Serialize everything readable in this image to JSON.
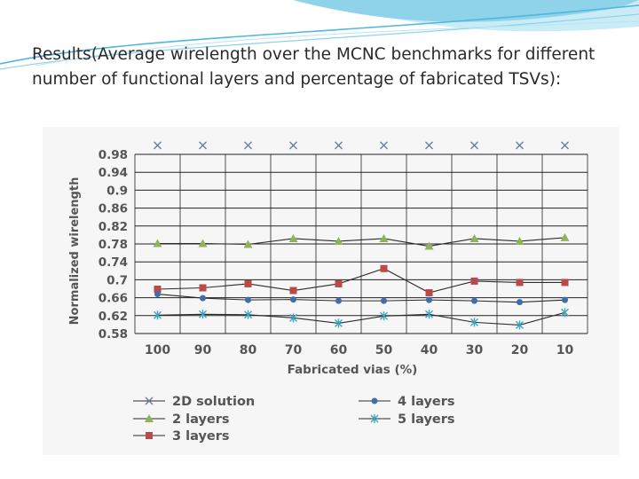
{
  "slide": {
    "title": "Results(Average wirelength over the MCNC benchmarks for different number of functional layers and percentage of fabricated TSVs):"
  },
  "theme": {
    "swoosh_colors": [
      "#8fd3ea",
      "#4fb6dc",
      "#c9ecf7"
    ],
    "grid_color": "#222222",
    "axis_text_color": "#555555"
  },
  "chart_data": {
    "type": "line",
    "title": "",
    "xlabel": "Fabricated vias (%)",
    "ylabel": "Normalized wirelength",
    "categories": [
      "100",
      "90",
      "80",
      "70",
      "60",
      "50",
      "40",
      "30",
      "20",
      "10"
    ],
    "ylim": [
      0.58,
      0.98
    ],
    "yticks": [
      "0.98",
      "0.94",
      "0.9",
      "0.86",
      "0.82",
      "0.78",
      "0.74",
      "0.7",
      "0.66",
      "0.62",
      "0.58"
    ],
    "ytick_values": [
      0.98,
      0.94,
      0.9,
      0.86,
      0.82,
      0.78,
      0.74,
      0.7,
      0.66,
      0.62,
      0.58
    ],
    "grid": true,
    "legend_position": "bottom",
    "series": [
      {
        "name": "2D solution",
        "marker": "x",
        "color": "#6f7fa8",
        "values": [
          1.0,
          1.0,
          1.0,
          1.0,
          1.0,
          1.0,
          1.0,
          1.0,
          1.0,
          1.0
        ]
      },
      {
        "name": "2 layers",
        "marker": "triangle",
        "color": "#8fb35a",
        "values": [
          0.781,
          0.781,
          0.779,
          0.792,
          0.786,
          0.792,
          0.775,
          0.792,
          0.786,
          0.794
        ]
      },
      {
        "name": "3 layers",
        "marker": "square",
        "color": "#b84a48",
        "values": [
          0.679,
          0.682,
          0.691,
          0.676,
          0.691,
          0.725,
          0.671,
          0.697,
          0.694,
          0.694
        ]
      },
      {
        "name": "4 layers",
        "marker": "circle",
        "color": "#3f6ea8",
        "values": [
          0.668,
          0.659,
          0.655,
          0.656,
          0.653,
          0.653,
          0.655,
          0.653,
          0.65,
          0.655
        ]
      },
      {
        "name": "5 layers",
        "marker": "star",
        "color": "#3aa7c5",
        "values": [
          0.621,
          0.623,
          0.622,
          0.615,
          0.603,
          0.619,
          0.623,
          0.605,
          0.599,
          0.627
        ]
      }
    ]
  }
}
